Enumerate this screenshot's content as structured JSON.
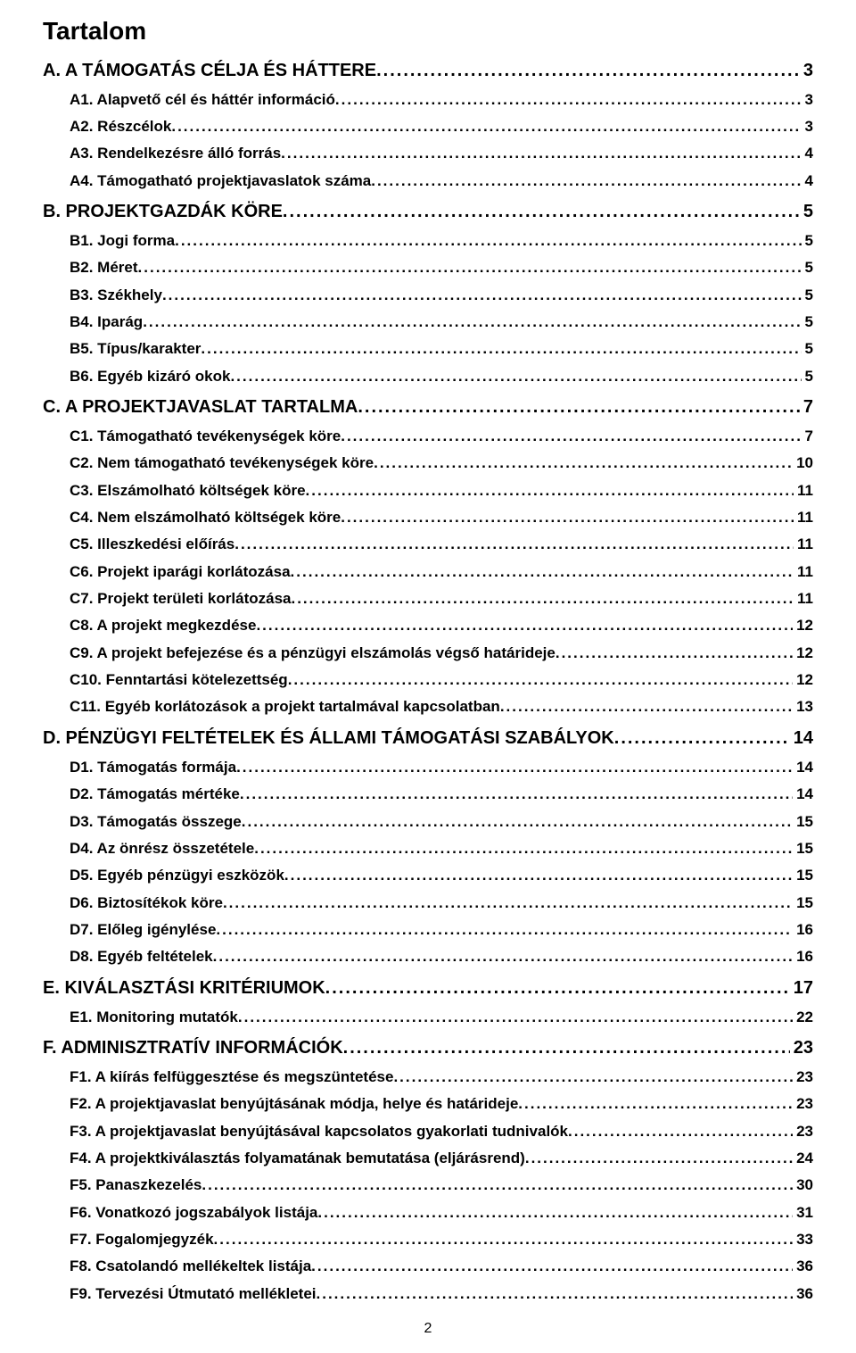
{
  "title": "Tartalom",
  "page_number": "2",
  "colors": {
    "text": "#000000",
    "background": "#ffffff"
  },
  "toc": [
    {
      "level": 1,
      "label": "A.   A TÁMOGATÁS CÉLJA ÉS HÁTTERE",
      "page": "3"
    },
    {
      "level": 2,
      "label": "A1. Alapvető cél és háttér információ",
      "page": "3"
    },
    {
      "level": 2,
      "label": "A2. Részcélok",
      "page": "3"
    },
    {
      "level": 2,
      "label": "A3. Rendelkezésre álló forrás",
      "page": "4"
    },
    {
      "level": 2,
      "label": "A4. Támogatható projektjavaslatok száma",
      "page": "4"
    },
    {
      "level": 1,
      "label": "B.   PROJEKTGAZDÁK KÖRE",
      "page": "5"
    },
    {
      "level": 2,
      "label": "B1. Jogi forma",
      "page": "5"
    },
    {
      "level": 2,
      "label": "B2. Méret",
      "page": "5"
    },
    {
      "level": 2,
      "label": "B3. Székhely",
      "page": "5"
    },
    {
      "level": 2,
      "label": "B4. Iparág",
      "page": "5"
    },
    {
      "level": 2,
      "label": "B5. Típus/karakter",
      "page": "5"
    },
    {
      "level": 2,
      "label": "B6. Egyéb kizáró okok",
      "page": "5"
    },
    {
      "level": 1,
      "label": "C.   A PROJEKTJAVASLAT TARTALMA",
      "page": "7"
    },
    {
      "level": 2,
      "label": "C1. Támogatható tevékenységek köre",
      "page": "7"
    },
    {
      "level": 2,
      "label": "C2. Nem támogatható tevékenységek köre",
      "page": "10"
    },
    {
      "level": 2,
      "label": "C3. Elszámolható költségek köre",
      "page": "11"
    },
    {
      "level": 2,
      "label": "C4. Nem elszámolható költségek köre",
      "page": "11"
    },
    {
      "level": 2,
      "label": "C5. Illeszkedési előírás",
      "page": "11"
    },
    {
      "level": 2,
      "label": "C6. Projekt iparági korlátozása",
      "page": "11"
    },
    {
      "level": 2,
      "label": "C7. Projekt területi korlátozása",
      "page": "11"
    },
    {
      "level": 2,
      "label": "C8. A projekt megkezdése",
      "page": "12"
    },
    {
      "level": 2,
      "label": "C9. A projekt befejezése és a pénzügyi elszámolás végső határideje",
      "page": "12"
    },
    {
      "level": 2,
      "label": "C10. Fenntartási kötelezettség",
      "page": "12"
    },
    {
      "level": 2,
      "label": "C11. Egyéb korlátozások a projekt tartalmával kapcsolatban",
      "page": "13"
    },
    {
      "level": 1,
      "label": "D.   PÉNZÜGYI FELTÉTELEK ÉS ÁLLAMI TÁMOGATÁSI SZABÁLYOK",
      "page": "14"
    },
    {
      "level": 2,
      "label": "D1.   Támogatás formája",
      "page": "14"
    },
    {
      "level": 2,
      "label": "D2.   Támogatás mértéke",
      "page": "14"
    },
    {
      "level": 2,
      "label": "D3.   Támogatás összege",
      "page": "15"
    },
    {
      "level": 2,
      "label": "D4.   Az önrész összetétele",
      "page": "15"
    },
    {
      "level": 2,
      "label": "D5.   Egyéb pénzügyi eszközök",
      "page": "15"
    },
    {
      "level": 2,
      "label": "D6.   Biztosítékok köre",
      "page": "15"
    },
    {
      "level": 2,
      "label": "D7.   Előleg igénylése",
      "page": "16"
    },
    {
      "level": 2,
      "label": "D8.   Egyéb feltételek",
      "page": "16"
    },
    {
      "level": 1,
      "label": "E.   KIVÁLASZTÁSI KRITÉRIUMOK",
      "page": "17"
    },
    {
      "level": 2,
      "label": "E1. Monitoring mutatók",
      "page": "22"
    },
    {
      "level": 1,
      "label": "F.   ADMINISZTRATÍV INFORMÁCIÓK",
      "page": "23"
    },
    {
      "level": 2,
      "label": "F1. A kiírás felfüggesztése és megszüntetése",
      "page": "23"
    },
    {
      "level": 2,
      "label": "F2. A projektjavaslat benyújtásának módja, helye és határideje",
      "page": "23"
    },
    {
      "level": 2,
      "label": "F3. A projektjavaslat benyújtásával kapcsolatos gyakorlati tudnivalók",
      "page": "23"
    },
    {
      "level": 2,
      "label": "F4. A projektkiválasztás folyamatának bemutatása (eljárásrend)",
      "page": "24"
    },
    {
      "level": 2,
      "label": "F5. Panaszkezelés",
      "page": "30"
    },
    {
      "level": 2,
      "label": "F6. Vonatkozó jogszabályok listája",
      "page": "31"
    },
    {
      "level": 2,
      "label": "F7. Fogalomjegyzék",
      "page": "33"
    },
    {
      "level": 2,
      "label": "F8. Csatolandó mellékeltek listája",
      "page": "36"
    },
    {
      "level": 2,
      "label": "F9. Tervezési Útmutató mellékletei",
      "page": "36"
    }
  ]
}
